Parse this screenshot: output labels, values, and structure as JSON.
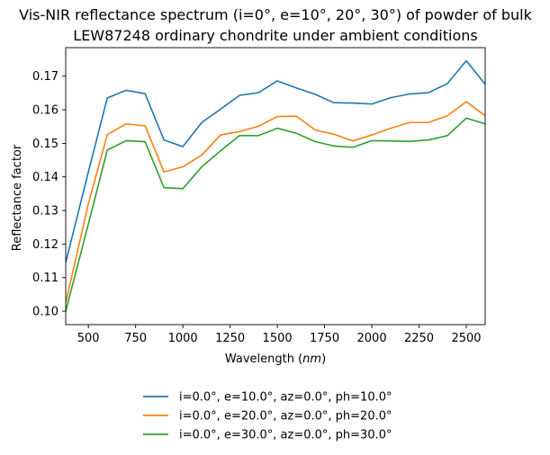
{
  "chart_data": {
    "type": "line",
    "title": "Vis-NIR reflectance spectrum (i=0°, e=10°, 20°, 30°) of powder of bulk",
    "subtitle": "LEW87248 ordinary chondrite under ambient conditions",
    "xlabel_prefix": "Wavelength (",
    "xlabel_unit": "nm",
    "xlabel_suffix": ")",
    "ylabel": "Reflectance factor",
    "xlim": [
      380,
      2600
    ],
    "ylim": [
      0.096,
      0.1785
    ],
    "xticks": [
      500,
      750,
      1000,
      1250,
      1500,
      1750,
      2000,
      2250,
      2500
    ],
    "yticks": [
      0.1,
      0.11,
      0.12,
      0.13,
      0.14,
      0.15,
      0.16,
      0.17
    ],
    "ytick_labels": [
      "0.10",
      "0.11",
      "0.12",
      "0.13",
      "0.14",
      "0.15",
      "0.16",
      "0.17"
    ],
    "grid": false,
    "legend_position": "below",
    "x": [
      380,
      500,
      600,
      700,
      800,
      900,
      1000,
      1100,
      1200,
      1300,
      1400,
      1500,
      1600,
      1700,
      1800,
      1900,
      2000,
      2100,
      2200,
      2300,
      2400,
      2500,
      2600
    ],
    "series": [
      {
        "name": "i=0.0°, e=10.0°, az=0.0°, ph=10.0°",
        "color": "#1f77b4",
        "values": [
          0.1145,
          0.1415,
          0.1635,
          0.1658,
          0.1648,
          0.151,
          0.149,
          0.1562,
          0.1602,
          0.1643,
          0.1651,
          0.1686,
          0.1665,
          0.1646,
          0.1621,
          0.162,
          0.1617,
          0.1636,
          0.1647,
          0.1651,
          0.1678,
          0.1746,
          0.1676
        ]
      },
      {
        "name": "i=0.0°, e=20.0°, az=0.0°, ph=20.0°",
        "color": "#ff7f0e",
        "values": [
          0.1025,
          0.132,
          0.1526,
          0.1558,
          0.1552,
          0.1415,
          0.143,
          0.1465,
          0.1525,
          0.1535,
          0.1551,
          0.158,
          0.1581,
          0.154,
          0.1527,
          0.1507,
          0.1525,
          0.1545,
          0.1562,
          0.1562,
          0.1582,
          0.1624,
          0.1582
        ]
      },
      {
        "name": "i=0.0°, e=30.0°, az=0.0°, ph=30.0°",
        "color": "#2ca02c",
        "values": [
          0.1,
          0.126,
          0.148,
          0.1508,
          0.1505,
          0.1368,
          0.1365,
          0.143,
          0.1478,
          0.1523,
          0.1523,
          0.1545,
          0.153,
          0.1505,
          0.1492,
          0.1488,
          0.1508,
          0.1507,
          0.1506,
          0.151,
          0.1523,
          0.1575,
          0.1558
        ]
      }
    ]
  }
}
